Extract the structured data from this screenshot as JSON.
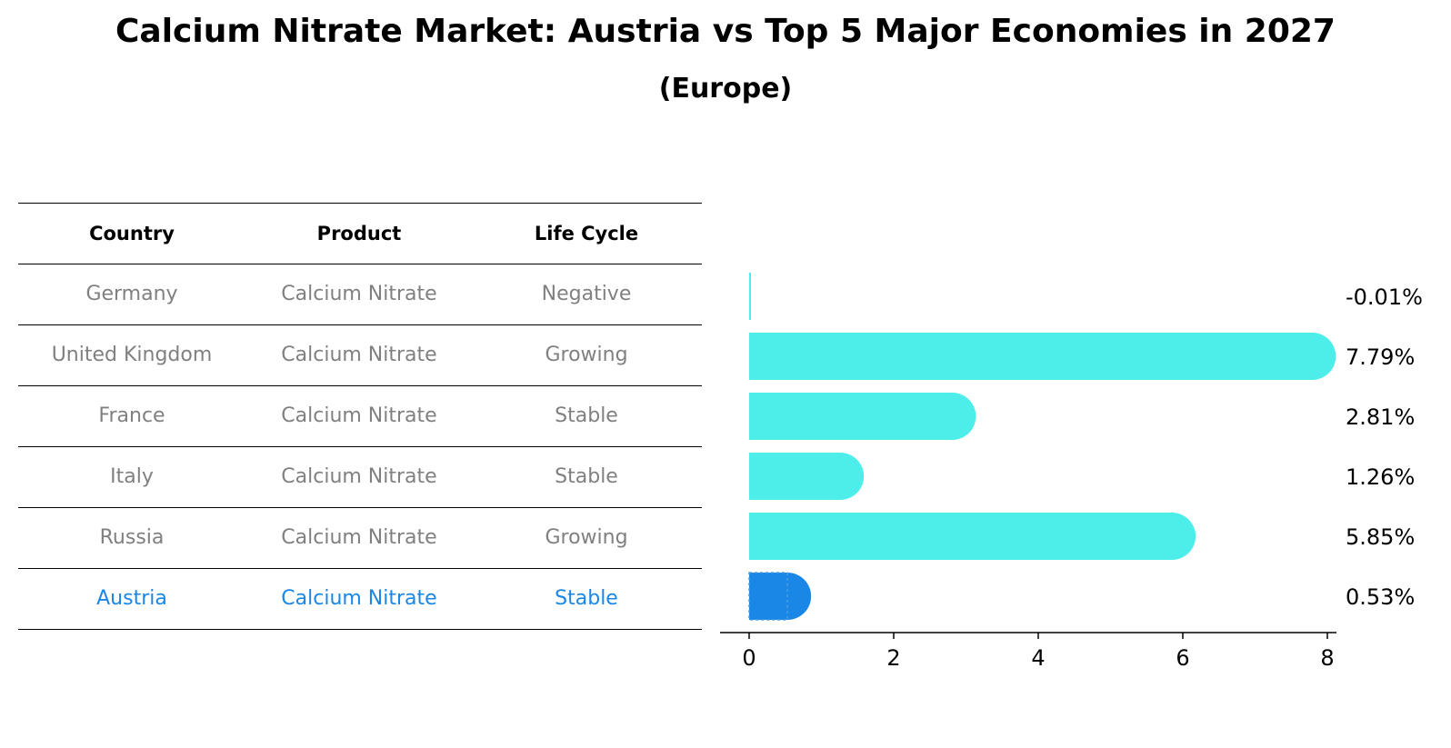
{
  "title": "Calcium Nitrate Market: Austria vs Top 5 Major Economies in 2027",
  "subtitle": "(Europe)",
  "table": {
    "headers": [
      "Country",
      "Product",
      "Life Cycle"
    ],
    "rows": [
      {
        "country": "Germany",
        "product": "Calcium Nitrate",
        "life_cycle": "Negative"
      },
      {
        "country": "United Kingdom",
        "product": "Calcium Nitrate",
        "life_cycle": "Growing"
      },
      {
        "country": "France",
        "product": "Calcium Nitrate",
        "life_cycle": "Stable"
      },
      {
        "country": "Italy",
        "product": "Calcium Nitrate",
        "life_cycle": "Stable"
      },
      {
        "country": "Russia",
        "product": "Calcium Nitrate",
        "life_cycle": "Growing"
      },
      {
        "country": "Austria",
        "product": "Calcium Nitrate",
        "life_cycle": "Stable"
      }
    ]
  },
  "colors": {
    "bar": "#4deeea",
    "highlight": "#1a86e6",
    "muted_text": "#808080"
  },
  "chart_data": {
    "type": "bar",
    "orientation": "horizontal",
    "categories": [
      "Germany",
      "United Kingdom",
      "France",
      "Italy",
      "Russia",
      "Austria"
    ],
    "values": [
      -0.01,
      7.79,
      2.81,
      1.26,
      5.85,
      0.53
    ],
    "value_labels": [
      "-0.01%",
      "7.79%",
      "2.81%",
      "1.26%",
      "5.85%",
      "0.53%"
    ],
    "highlight_category": "Austria",
    "xlim": [
      0,
      8
    ],
    "xticks": [
      0,
      2,
      4,
      6,
      8
    ],
    "grid": false
  }
}
